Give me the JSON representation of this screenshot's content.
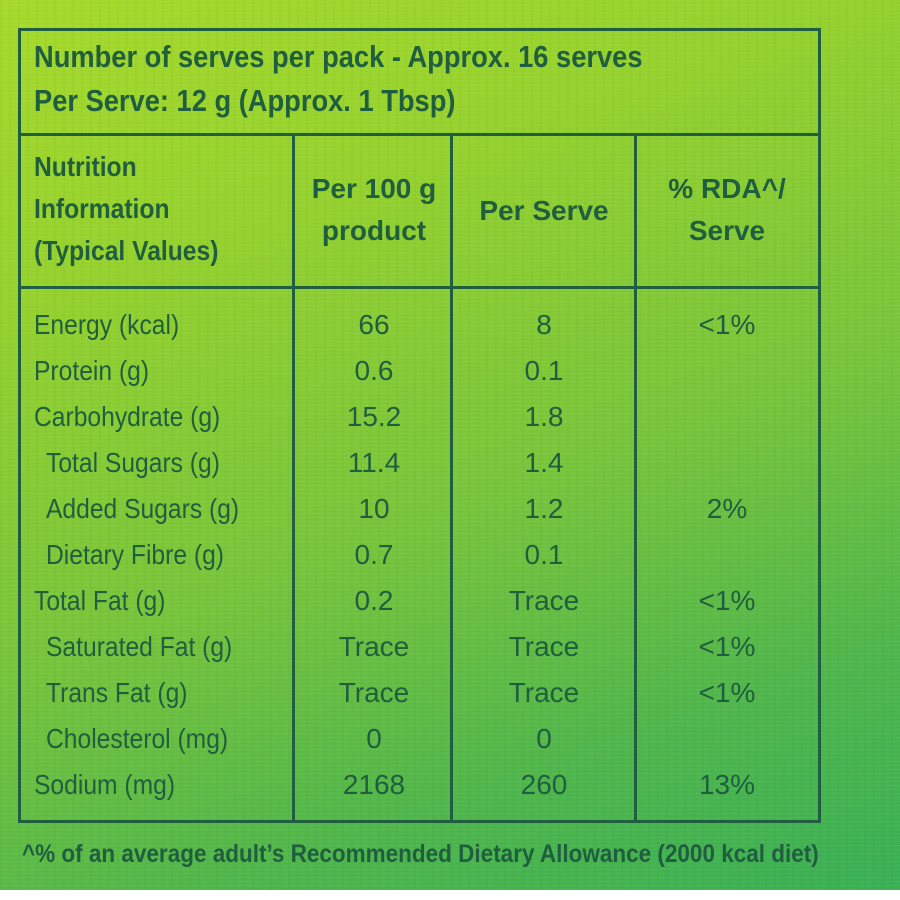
{
  "pack_info": {
    "serves_per_pack": "Number of serves per pack - Approx. 16 serves",
    "per_serve": "Per Serve: 12 g (Approx. 1 Tbsp)"
  },
  "table": {
    "headers": {
      "nutrient_line1": "Nutrition",
      "nutrient_line2": "Information",
      "nutrient_line3": "(Typical Values)",
      "per100_line1": "Per 100 g",
      "per100_line2": "product",
      "per_serve": "Per Serve",
      "rda_line1": "% RDA^/",
      "rda_line2": "Serve"
    },
    "rows": [
      {
        "name": "Energy (kcal)",
        "per100": "66",
        "per_serve": "8",
        "rda": "<1%"
      },
      {
        "name": "Protein (g)",
        "per100": "0.6",
        "per_serve": "0.1",
        "rda": ""
      },
      {
        "name": "Carbohydrate (g)",
        "per100": "15.2",
        "per_serve": "1.8",
        "rda": ""
      },
      {
        "name": "Total Sugars (g)",
        "per100": "11.4",
        "per_serve": "1.4",
        "rda": ""
      },
      {
        "name": "Added Sugars (g)",
        "per100": "10",
        "per_serve": "1.2",
        "rda": "2%"
      },
      {
        "name": "Dietary Fibre (g)",
        "per100": "0.7",
        "per_serve": "0.1",
        "rda": ""
      },
      {
        "name": "Total Fat (g)",
        "per100": "0.2",
        "per_serve": "Trace",
        "rda": "<1%"
      },
      {
        "name": "Saturated Fat (g)",
        "per100": "Trace",
        "per_serve": "Trace",
        "rda": "<1%"
      },
      {
        "name": "Trans Fat (g)",
        "per100": "Trace",
        "per_serve": "Trace",
        "rda": "<1%"
      },
      {
        "name": "Cholesterol (mg)",
        "per100": "0",
        "per_serve": "0",
        "rda": ""
      },
      {
        "name": "Sodium (mg)",
        "per100": "2168",
        "per_serve": "260",
        "rda": "13%"
      }
    ]
  },
  "footnote": "^% of an average adult’s Recommended Dietary Allowance (2000 kcal diet)"
}
